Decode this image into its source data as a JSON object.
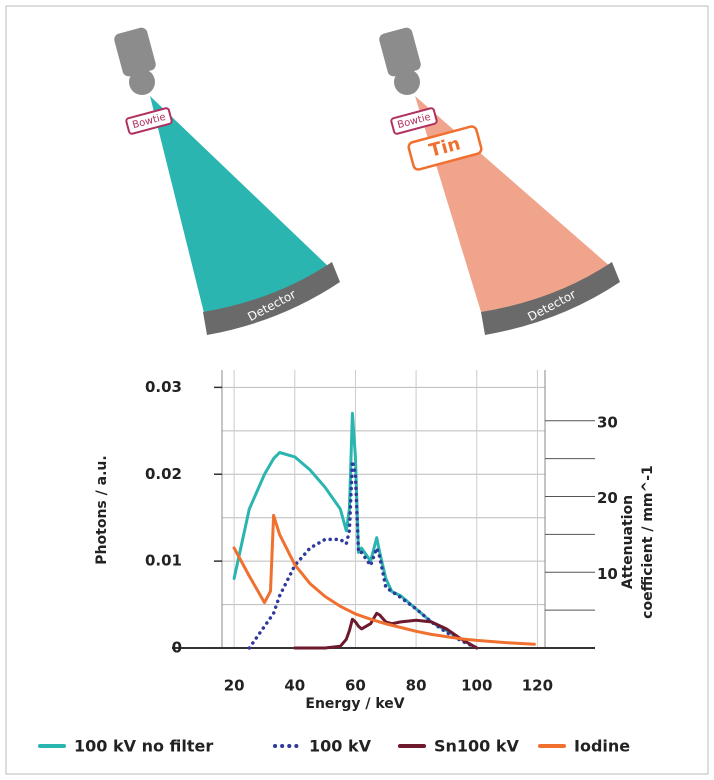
{
  "diagram": {
    "left": {
      "filter": "Bowtie",
      "detector": "Detector"
    },
    "right": {
      "filter": "Bowtie",
      "extra_filter": "Tin",
      "detector": "Detector"
    }
  },
  "chart_data": {
    "type": "line",
    "xlabel": "Energy / keV",
    "ylabel": "Photons / a.u.",
    "y2label": [
      "Attenuation",
      "coefficient / mm^-1"
    ],
    "xlim": [
      16,
      122.5
    ],
    "xticks": [
      20,
      40,
      60,
      80,
      100,
      120
    ],
    "ylim": [
      0,
      0.032
    ],
    "yticks": [
      0,
      0.01,
      0.02,
      0.03
    ],
    "minor_yticks": [
      0.005,
      0.015,
      0.025
    ],
    "y2lim": [
      0,
      36.7
    ],
    "y2ticks": [
      10,
      20,
      30
    ],
    "minor_y2ticks": [
      5,
      15,
      25
    ],
    "grid": true,
    "series": [
      {
        "name": "100 kV no filter",
        "color": "#2ab5b0",
        "line_style": "solid",
        "x": [
          20,
          25,
          30,
          33,
          35,
          40,
          45,
          50,
          55,
          57,
          58,
          59,
          60,
          61,
          62,
          65,
          67,
          68,
          70,
          72,
          75,
          80,
          85,
          90,
          95,
          100
        ],
        "values": [
          0.008,
          0.016,
          0.02,
          0.0218,
          0.0225,
          0.022,
          0.0205,
          0.0185,
          0.016,
          0.0135,
          0.016,
          0.027,
          0.022,
          0.011,
          0.0115,
          0.01,
          0.0127,
          0.011,
          0.008,
          0.0065,
          0.006,
          0.0045,
          0.003,
          0.002,
          0.001,
          0
        ]
      },
      {
        "name": "100 kV",
        "color": "#2f3a9e",
        "line_style": "dotted",
        "x": [
          25,
          30,
          33,
          35,
          40,
          45,
          50,
          55,
          57,
          58,
          59,
          60,
          61,
          62,
          65,
          67,
          68,
          70,
          72,
          75,
          80,
          85,
          90,
          95,
          100
        ],
        "values": [
          0,
          0.0025,
          0.004,
          0.006,
          0.0095,
          0.0115,
          0.0125,
          0.0125,
          0.012,
          0.0135,
          0.0215,
          0.02,
          0.011,
          0.011,
          0.0095,
          0.0115,
          0.0105,
          0.007,
          0.0065,
          0.0058,
          0.0045,
          0.003,
          0.0018,
          0.0008,
          0
        ]
      },
      {
        "name": "Sn100 kV",
        "color": "#6e1a2e",
        "line_style": "solid",
        "x": [
          40,
          50,
          55,
          57,
          58,
          59,
          60,
          61,
          62,
          65,
          67,
          68,
          70,
          72,
          75,
          80,
          85,
          90,
          95,
          100
        ],
        "values": [
          0,
          0,
          0.0002,
          0.001,
          0.002,
          0.0033,
          0.003,
          0.0025,
          0.0022,
          0.0028,
          0.004,
          0.0038,
          0.003,
          0.0028,
          0.003,
          0.0032,
          0.003,
          0.0022,
          0.001,
          0
        ]
      },
      {
        "name": "Iodine",
        "color": "#f07030",
        "line_style": "solid",
        "axis": "y2",
        "x": [
          20,
          25,
          30,
          32,
          33,
          35,
          40,
          45,
          50,
          55,
          60,
          65,
          70,
          75,
          80,
          85,
          90,
          95,
          100,
          110,
          119
        ],
        "values": [
          13.2,
          9.5,
          6,
          7.5,
          17.5,
          15,
          11,
          8.5,
          6.8,
          5.5,
          4.5,
          3.8,
          3.2,
          2.7,
          2.2,
          1.8,
          1.5,
          1.2,
          1,
          0.7,
          0.5
        ]
      }
    ]
  }
}
